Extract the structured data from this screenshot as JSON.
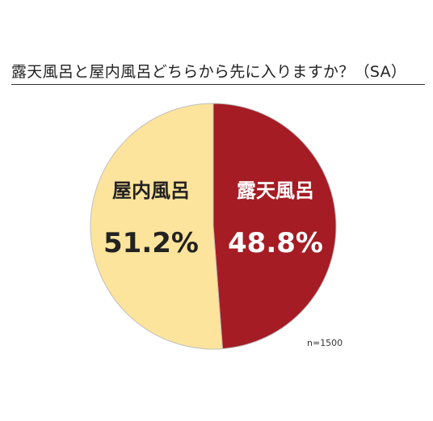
{
  "chart_data": {
    "type": "pie",
    "title": "露天風呂と屋内風呂どちらから先に入りますか？（SA）",
    "slices": [
      {
        "label": "露天風呂",
        "value": 48.8,
        "display": "48.8%",
        "color": "#a51c24",
        "text_color": "#ffffff"
      },
      {
        "label": "屋内風呂",
        "value": 51.2,
        "display": "51.2%",
        "color": "#fde49c",
        "text_color": "#222222"
      }
    ],
    "note": "n=1500",
    "start_angle": "12 o'clock",
    "direction": "clockwise",
    "slice_border_color": "#bfbfbf"
  }
}
